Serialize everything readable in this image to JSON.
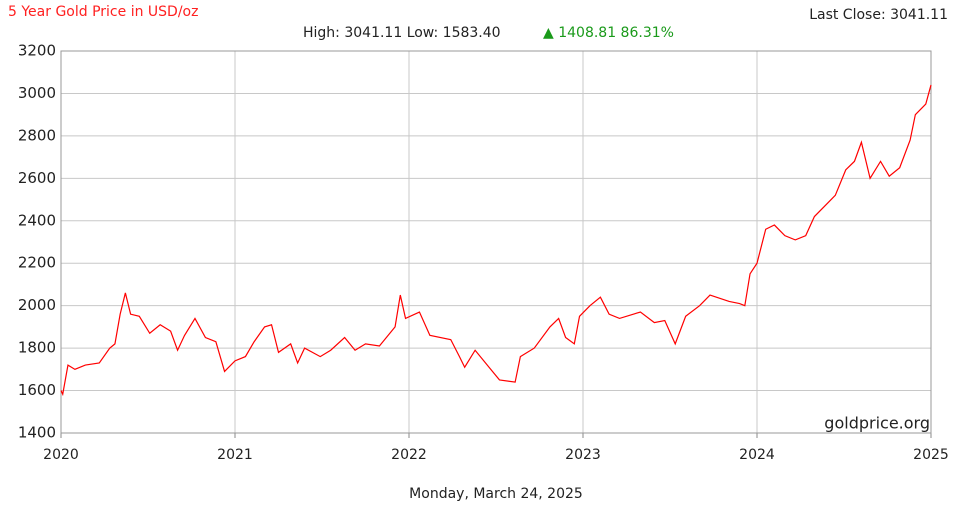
{
  "chart_data": {
    "type": "line",
    "title": "5 Year Gold Price in USD/oz",
    "stats": "High: 3041.11 Low: 1583.40",
    "change": "▲ 1408.81 86.31%",
    "last_close": "Last Close: 3041.11",
    "watermark": "goldprice.org",
    "date": "Monday, March 24, 2025",
    "x": [
      2020.0,
      2020.01,
      2020.04,
      2020.08,
      2020.14,
      2020.22,
      2020.28,
      2020.31,
      2020.34,
      2020.37,
      2020.4,
      2020.45,
      2020.51,
      2020.57,
      2020.63,
      2020.67,
      2020.71,
      2020.77,
      2020.83,
      2020.89,
      2020.94,
      2021.0,
      2021.06,
      2021.11,
      2021.17,
      2021.21,
      2021.25,
      2021.32,
      2021.36,
      2021.4,
      2021.49,
      2021.55,
      2021.63,
      2021.69,
      2021.75,
      2021.83,
      2021.92,
      2021.95,
      2021.98,
      2022.06,
      2022.12,
      2022.24,
      2022.29,
      2022.32,
      2022.38,
      2022.47,
      2022.52,
      2022.61,
      2022.64,
      2022.72,
      2022.81,
      2022.86,
      2022.9,
      2022.95,
      2022.98,
      2023.04,
      2023.1,
      2023.15,
      2023.21,
      2023.33,
      2023.41,
      2023.47,
      2023.53,
      2023.59,
      2023.67,
      2023.73,
      2023.84,
      2023.9,
      2023.93,
      2023.96,
      2024.0,
      2024.05,
      2024.1,
      2024.16,
      2024.22,
      2024.28,
      2024.33,
      2024.39,
      2024.45,
      2024.51,
      2024.56,
      2024.6,
      2024.65,
      2024.71,
      2024.76,
      2024.82,
      2024.88,
      2024.91,
      2024.97,
      2025.0
    ],
    "series": [
      {
        "name": "Gold",
        "color": "#ff0000",
        "values": [
          1600,
          1583,
          1720,
          1700,
          1720,
          1730,
          1800,
          1820,
          1960,
          2060,
          1960,
          1950,
          1870,
          1910,
          1880,
          1790,
          1860,
          1940,
          1850,
          1830,
          1690,
          1740,
          1760,
          1830,
          1900,
          1910,
          1780,
          1820,
          1730,
          1800,
          1760,
          1790,
          1850,
          1790,
          1820,
          1810,
          1900,
          2050,
          1940,
          1970,
          1860,
          1840,
          1760,
          1710,
          1790,
          1700,
          1650,
          1640,
          1760,
          1800,
          1900,
          1940,
          1850,
          1820,
          1950,
          2000,
          2040,
          1960,
          1940,
          1970,
          1920,
          1930,
          1820,
          1950,
          2000,
          2050,
          2020,
          2010,
          2000,
          2150,
          2200,
          2360,
          2380,
          2330,
          2310,
          2330,
          2420,
          2470,
          2520,
          2640,
          2680,
          2770,
          2600,
          2680,
          2610,
          2650,
          2780,
          2900,
          2950,
          3040
        ]
      }
    ],
    "xlim": [
      2020,
      2025
    ],
    "xticks": [
      2020,
      2021,
      2022,
      2023,
      2024,
      2025
    ],
    "ylim": [
      1400,
      3200
    ],
    "yticks": [
      1400,
      1600,
      1800,
      2000,
      2200,
      2400,
      2600,
      2800,
      3000,
      3200
    ],
    "grid": true
  }
}
